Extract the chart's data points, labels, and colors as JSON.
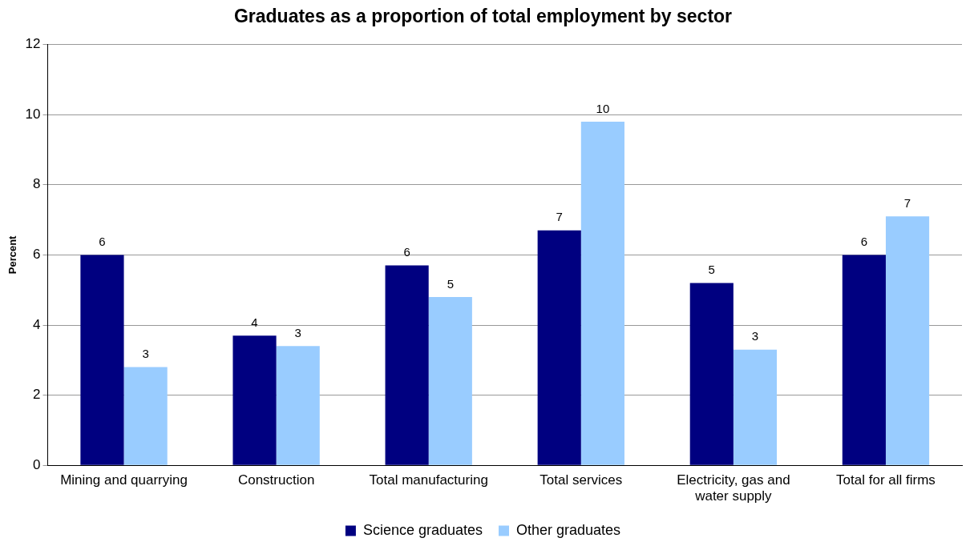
{
  "chart_data": {
    "type": "bar",
    "title": "Graduates as a proportion of total employment by sector",
    "ylabel": "Percent",
    "categories": [
      "Mining and quarrying",
      "Construction",
      "Total manufacturing",
      "Total services",
      "Electricity, gas and water supply",
      "Total for all firms"
    ],
    "series": [
      {
        "name": "Science graduates",
        "color": "#000080",
        "values": [
          6.0,
          3.7,
          5.7,
          6.7,
          5.2,
          6.0
        ],
        "value_labels": [
          "6",
          "4",
          "6",
          "7",
          "5",
          "6"
        ]
      },
      {
        "name": "Other graduates",
        "color": "#99ccff",
        "values": [
          2.8,
          3.4,
          4.8,
          9.8,
          3.3,
          7.1
        ],
        "value_labels": [
          "3",
          "3",
          "5",
          "10",
          "3",
          "7"
        ]
      }
    ],
    "ylim": [
      0,
      12
    ],
    "yticks": [
      0,
      2,
      4,
      6,
      8,
      10,
      12
    ],
    "grid": "y",
    "legend": "bottom"
  }
}
